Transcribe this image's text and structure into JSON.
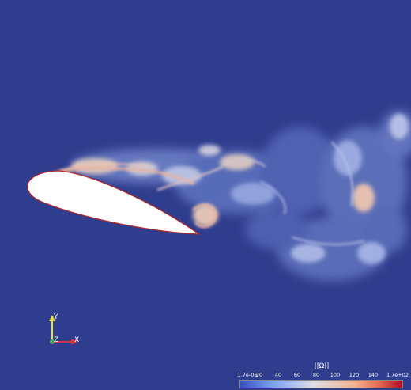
{
  "colors": {
    "background": "#2f3d8e",
    "airfoil": "#ffffff",
    "edge": "#b42828",
    "colormap": [
      "#3b4cc0",
      "#7a9ff5",
      "#c5d2ee",
      "#eecbb8",
      "#f08f6e",
      "#b40426"
    ]
  },
  "axes_triad": {
    "y_label": "Y",
    "z_label": "Z",
    "x_label": "X"
  },
  "colorbar": {
    "title": "||Ω||",
    "min_label": "1.7e-06",
    "max_label": "1.7e+02",
    "ticks": [
      "20",
      "40",
      "60",
      "80",
      "100",
      "120",
      "140"
    ]
  }
}
